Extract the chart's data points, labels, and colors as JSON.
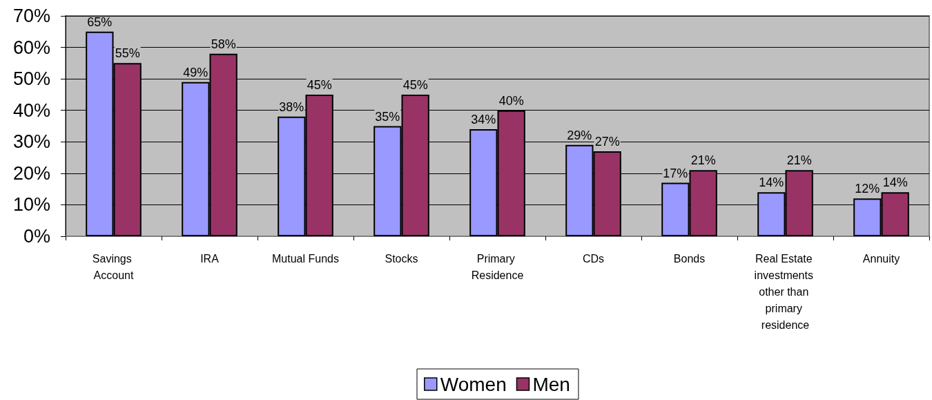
{
  "chart_data": {
    "type": "bar",
    "categories": [
      "Savings Account",
      "IRA",
      "Mutual Funds",
      "Stocks",
      "Primary Residence",
      "CDs",
      "Bonds",
      "Real Estate investments other than primary residence",
      "Annuity"
    ],
    "series": [
      {
        "name": "Women",
        "color": "#9999ff",
        "values": [
          65,
          49,
          38,
          35,
          34,
          29,
          17,
          14,
          12
        ],
        "value_labels": [
          "65%",
          "49%",
          "38%",
          "35%",
          "34%",
          "29%",
          "17%",
          "14%",
          "12%"
        ]
      },
      {
        "name": "Men",
        "color": "#993366",
        "values": [
          55,
          58,
          45,
          45,
          40,
          27,
          21,
          21,
          14
        ],
        "value_labels": [
          "55%",
          "58%",
          "45%",
          "45%",
          "40%",
          "27%",
          "21%",
          "21%",
          "14%"
        ]
      }
    ],
    "ylim": [
      0,
      70
    ],
    "yticks": [
      {
        "value": 0,
        "label": "0%"
      },
      {
        "value": 10,
        "label": "10%"
      },
      {
        "value": 20,
        "label": "20%"
      },
      {
        "value": 30,
        "label": "30%"
      },
      {
        "value": 40,
        "label": "40%"
      },
      {
        "value": 50,
        "label": "50%"
      },
      {
        "value": 60,
        "label": "60%"
      },
      {
        "value": 70,
        "label": "70%"
      }
    ],
    "grid": "y",
    "legend": "bottom"
  }
}
